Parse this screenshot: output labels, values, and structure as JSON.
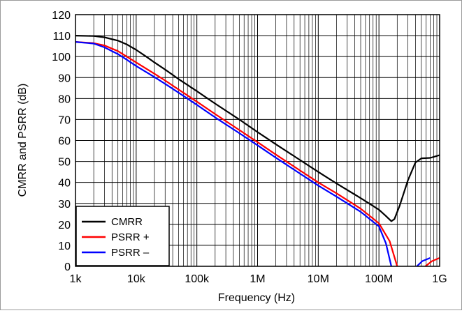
{
  "chart_data": {
    "type": "line",
    "title": "",
    "xlabel": "Frequency (Hz)",
    "ylabel": "CMRR and PSRR (dB)",
    "xscale": "log",
    "xlim": [
      1000,
      1000000000
    ],
    "ylim": [
      0,
      120
    ],
    "grid": true,
    "legend_position": "bottom-left",
    "x_ticks": [
      {
        "value": 1000,
        "label": "1k"
      },
      {
        "value": 10000,
        "label": "10k"
      },
      {
        "value": 100000,
        "label": "100k"
      },
      {
        "value": 1000000,
        "label": "1M"
      },
      {
        "value": 10000000,
        "label": "10M"
      },
      {
        "value": 100000000,
        "label": "100M"
      },
      {
        "value": 1000000000,
        "label": "1G"
      }
    ],
    "y_ticks": [
      0,
      10,
      20,
      30,
      40,
      50,
      60,
      70,
      80,
      90,
      100,
      110,
      120
    ],
    "series": [
      {
        "name": "CMRR",
        "color": "#000000",
        "points": [
          [
            1000,
            110
          ],
          [
            2000,
            109.8
          ],
          [
            3000,
            109.2
          ],
          [
            5000,
            107.6
          ],
          [
            7000,
            105.8
          ],
          [
            10000,
            103.2
          ],
          [
            15000,
            99.8
          ],
          [
            20000,
            97.2
          ],
          [
            30000,
            93.8
          ],
          [
            50000,
            89.3
          ],
          [
            100000,
            83.5
          ],
          [
            200000,
            77.6
          ],
          [
            500000,
            70
          ],
          [
            1000000,
            64
          ],
          [
            2000000,
            58.2
          ],
          [
            5000000,
            50.7
          ],
          [
            10000000,
            45
          ],
          [
            20000000,
            39.5
          ],
          [
            50000000,
            32.5
          ],
          [
            100000000,
            27
          ],
          [
            130000000,
            24
          ],
          [
            160000000,
            21.5
          ],
          [
            180000000,
            22.5
          ],
          [
            220000000,
            29
          ],
          [
            300000000,
            41
          ],
          [
            400000000,
            49.5
          ],
          [
            500000000,
            51.5
          ],
          [
            700000000,
            51.7
          ],
          [
            1000000000,
            53
          ]
        ]
      },
      {
        "name": "PSRR +",
        "color": "#ff0000",
        "points": [
          [
            1000,
            107
          ],
          [
            2000,
            106.4
          ],
          [
            3000,
            105.3
          ],
          [
            5000,
            102.6
          ],
          [
            7000,
            100
          ],
          [
            10000,
            97.2
          ],
          [
            20000,
            91.8
          ],
          [
            30000,
            88.6
          ],
          [
            50000,
            84.3
          ],
          [
            100000,
            78.5
          ],
          [
            200000,
            72.6
          ],
          [
            500000,
            65
          ],
          [
            1000000,
            59.2
          ],
          [
            2000000,
            53.3
          ],
          [
            5000000,
            45.7
          ],
          [
            10000000,
            40
          ],
          [
            20000000,
            34.8
          ],
          [
            50000000,
            27.5
          ],
          [
            100000000,
            20.5
          ],
          [
            150000000,
            12
          ],
          [
            200000000,
            0
          ]
        ]
      },
      {
        "name": "PSRR +",
        "color": "#ff0000",
        "points": [
          [
            580000000,
            0
          ],
          [
            750000000,
            2.5
          ],
          [
            1000000000,
            4
          ]
        ]
      },
      {
        "name": "PSRR –",
        "color": "#0000ff",
        "points": [
          [
            1000,
            107
          ],
          [
            2000,
            106.2
          ],
          [
            3000,
            104.4
          ],
          [
            5000,
            101.2
          ],
          [
            7000,
            98.5
          ],
          [
            10000,
            95.5
          ],
          [
            20000,
            90.2
          ],
          [
            30000,
            87
          ],
          [
            50000,
            82.8
          ],
          [
            100000,
            77
          ],
          [
            200000,
            71
          ],
          [
            500000,
            63.5
          ],
          [
            1000000,
            57.7
          ],
          [
            2000000,
            51.8
          ],
          [
            5000000,
            44.2
          ],
          [
            10000000,
            38.5
          ],
          [
            20000000,
            33.2
          ],
          [
            50000000,
            26
          ],
          [
            100000000,
            19
          ],
          [
            130000000,
            11
          ],
          [
            160000000,
            0
          ]
        ]
      },
      {
        "name": "PSRR –",
        "color": "#0000ff",
        "points": [
          [
            420000000,
            0
          ],
          [
            520000000,
            2.5
          ],
          [
            700000000,
            4
          ]
        ]
      }
    ],
    "legend": [
      {
        "label": "CMRR",
        "color": "#000000"
      },
      {
        "label": "PSRR +",
        "color": "#ff0000"
      },
      {
        "label": "PSRR –",
        "color": "#0000ff"
      }
    ]
  }
}
